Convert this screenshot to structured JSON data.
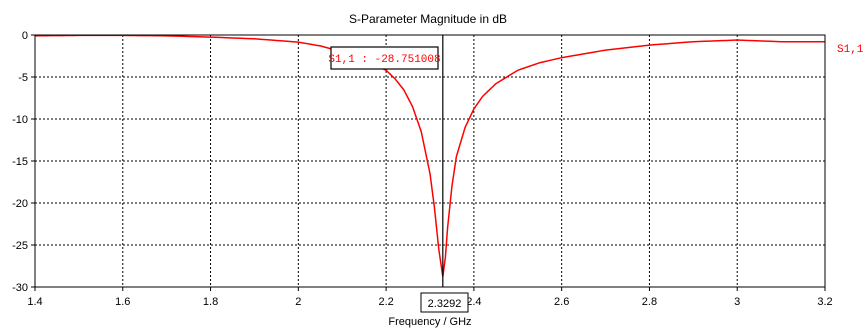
{
  "chart_data": {
    "type": "line",
    "title": "S-Parameter Magnitude in dB",
    "xlabel": "Frequency / GHz",
    "ylabel": "",
    "xlim": [
      1.4,
      3.2
    ],
    "ylim": [
      -30,
      0
    ],
    "x_ticks": [
      "1.4",
      "1.6",
      "1.8",
      "2",
      "2.2",
      "2.4",
      "2.6",
      "2.8",
      "3",
      "3.2"
    ],
    "y_ticks": [
      "0",
      "-5",
      "-10",
      "-15",
      "-20",
      "-25",
      "-30"
    ],
    "grid": true,
    "series": [
      {
        "name": "S1,1",
        "color": "#ff0000",
        "x": [
          1.4,
          1.5,
          1.6,
          1.7,
          1.8,
          1.9,
          2.0,
          2.05,
          2.1,
          2.15,
          2.2,
          2.22,
          2.24,
          2.26,
          2.28,
          2.3,
          2.31,
          2.32,
          2.3292,
          2.335,
          2.34,
          2.35,
          2.36,
          2.38,
          2.4,
          2.42,
          2.45,
          2.5,
          2.55,
          2.6,
          2.7,
          2.8,
          2.9,
          3.0,
          3.1,
          3.2
        ],
        "y": [
          -0.1,
          -0.05,
          -0.05,
          -0.1,
          -0.25,
          -0.45,
          -0.85,
          -1.3,
          -2.0,
          -2.9,
          -4.2,
          -5.2,
          -6.5,
          -8.5,
          -11.5,
          -16.5,
          -20.5,
          -25.5,
          -28.75,
          -26.5,
          -23.0,
          -18.0,
          -14.5,
          -11.0,
          -8.8,
          -7.3,
          -5.8,
          -4.2,
          -3.3,
          -2.7,
          -1.8,
          -1.2,
          -0.8,
          -0.6,
          -0.8,
          -0.8
        ]
      }
    ],
    "marker": {
      "x": 2.3292,
      "label": "2.3292",
      "value_label": "S1,1 : -28.751008"
    }
  }
}
